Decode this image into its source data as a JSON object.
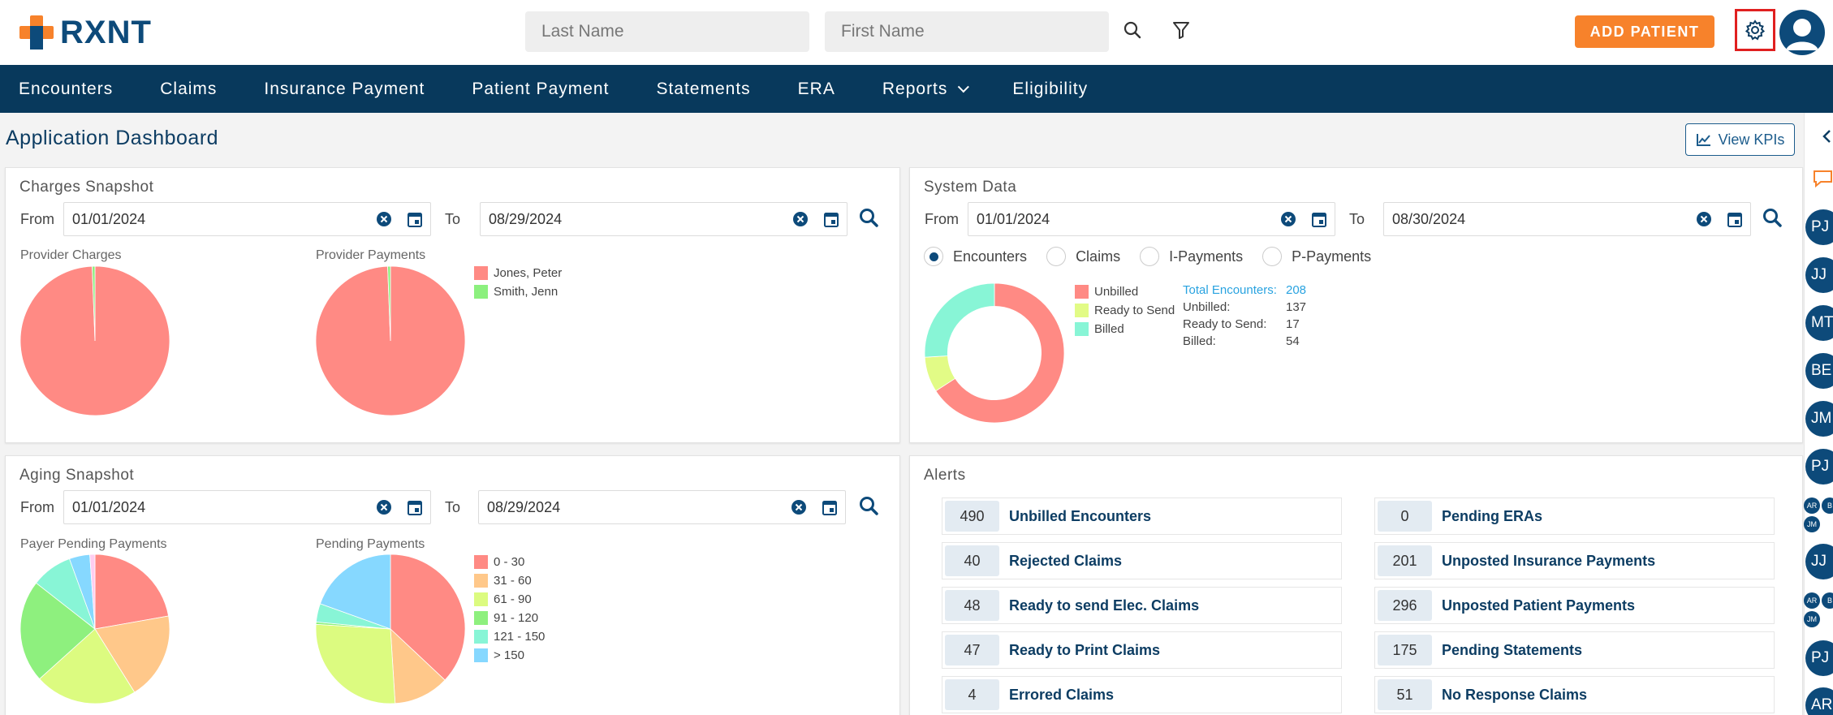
{
  "header": {
    "logo_text": "RXNT",
    "last_name_placeholder": "Last Name",
    "first_name_placeholder": "First Name",
    "add_patient_label": "ADD PATIENT"
  },
  "nav": {
    "items": [
      "Encounters",
      "Claims",
      "Insurance Payment",
      "Patient Payment",
      "Statements",
      "ERA",
      "Reports",
      "Eligibility"
    ]
  },
  "page": {
    "title": "Application Dashboard",
    "view_kpis_label": "View KPIs"
  },
  "charges": {
    "title": "Charges Snapshot",
    "from_label": "From",
    "to_label": "To",
    "from_date": "01/01/2024",
    "to_date": "08/29/2024",
    "provider_charges_label": "Provider Charges",
    "provider_payments_label": "Provider Payments",
    "legend": [
      {
        "name": "Jones, Peter",
        "color": "#ff8a84"
      },
      {
        "name": "Smith, Jenn",
        "color": "#8cf07e"
      }
    ]
  },
  "system": {
    "title": "System Data",
    "from_label": "From",
    "to_label": "To",
    "from_date": "01/01/2024",
    "to_date": "08/30/2024",
    "radios": [
      "Encounters",
      "Claims",
      "I-Payments",
      "P-Payments"
    ],
    "selected_radio": "Encounters",
    "legend": [
      {
        "name": "Unbilled",
        "color": "#ff8a84"
      },
      {
        "name": "Ready to Send",
        "color": "#e2fb86"
      },
      {
        "name": "Billed",
        "color": "#88f5d6"
      }
    ],
    "stats": {
      "total_label": "Total Encounters:",
      "total": "208",
      "unbilled_label": "Unbilled:",
      "unbilled": "137",
      "ready_label": "Ready to Send:",
      "ready": "17",
      "billed_label": "Billed:",
      "billed": "54"
    }
  },
  "aging": {
    "title": "Aging Snapshot",
    "from_label": "From",
    "to_label": "To",
    "from_date": "01/01/2024",
    "to_date": "08/29/2024",
    "payer_label": "Payer Pending Payments",
    "pending_label": "Pending Payments",
    "legend": [
      {
        "name": "0 - 30",
        "color": "#ff8a84"
      },
      {
        "name": "31 - 60",
        "color": "#ffc88a"
      },
      {
        "name": "61 - 90",
        "color": "#dcfb80"
      },
      {
        "name": "91 - 120",
        "color": "#8ef07e"
      },
      {
        "name": "121 - 150",
        "color": "#88f5d6"
      },
      {
        "name": "> 150",
        "color": "#86d8ff"
      }
    ]
  },
  "alerts": {
    "title": "Alerts",
    "left": [
      {
        "count": "490",
        "label": "Unbilled Encounters"
      },
      {
        "count": "40",
        "label": "Rejected Claims"
      },
      {
        "count": "48",
        "label": "Ready to send Elec. Claims"
      },
      {
        "count": "47",
        "label": "Ready to Print Claims"
      },
      {
        "count": "4",
        "label": "Errored Claims"
      }
    ],
    "right": [
      {
        "count": "0",
        "label": "Pending ERAs"
      },
      {
        "count": "201",
        "label": "Unposted Insurance Payments"
      },
      {
        "count": "296",
        "label": "Unposted Patient Payments"
      },
      {
        "count": "175",
        "label": "Pending Statements"
      },
      {
        "count": "51",
        "label": "No Response Claims"
      }
    ]
  },
  "rail": {
    "avatars": [
      "PJ",
      "JJ",
      "MT",
      "BE",
      "JM",
      "PJ",
      "JJ",
      "PJ",
      "AR"
    ],
    "mini_group": [
      "AR",
      "B",
      "JM"
    ]
  },
  "chart_data": [
    {
      "type": "pie",
      "title": "Provider Charges",
      "categories": [
        "Jones, Peter",
        "Smith, Jenn"
      ],
      "values": [
        99.4,
        0.6
      ]
    },
    {
      "type": "pie",
      "title": "Provider Payments",
      "categories": [
        "Jones, Peter",
        "Smith, Jenn"
      ],
      "values": [
        99.4,
        0.6
      ]
    },
    {
      "type": "pie",
      "title": "Encounters",
      "categories": [
        "Unbilled",
        "Ready to Send",
        "Billed"
      ],
      "values": [
        137,
        17,
        54
      ]
    },
    {
      "type": "pie",
      "title": "Payer Pending Payments",
      "categories": [
        "0 - 30",
        "31 - 60",
        "61 - 90",
        "91 - 120",
        "121 - 150",
        "> 150"
      ],
      "values": [
        20,
        17,
        20,
        20,
        8,
        4
      ],
      "extra_segment": {
        "color": "#ffcdf0",
        "value": 1
      }
    },
    {
      "type": "pie",
      "title": "Pending Payments",
      "categories": [
        "0 - 30",
        "31 - 60",
        "61 - 90",
        "91 - 120",
        "121 - 150",
        "> 150"
      ],
      "values": [
        37,
        12,
        27,
        0.5,
        4,
        19.5
      ]
    }
  ]
}
